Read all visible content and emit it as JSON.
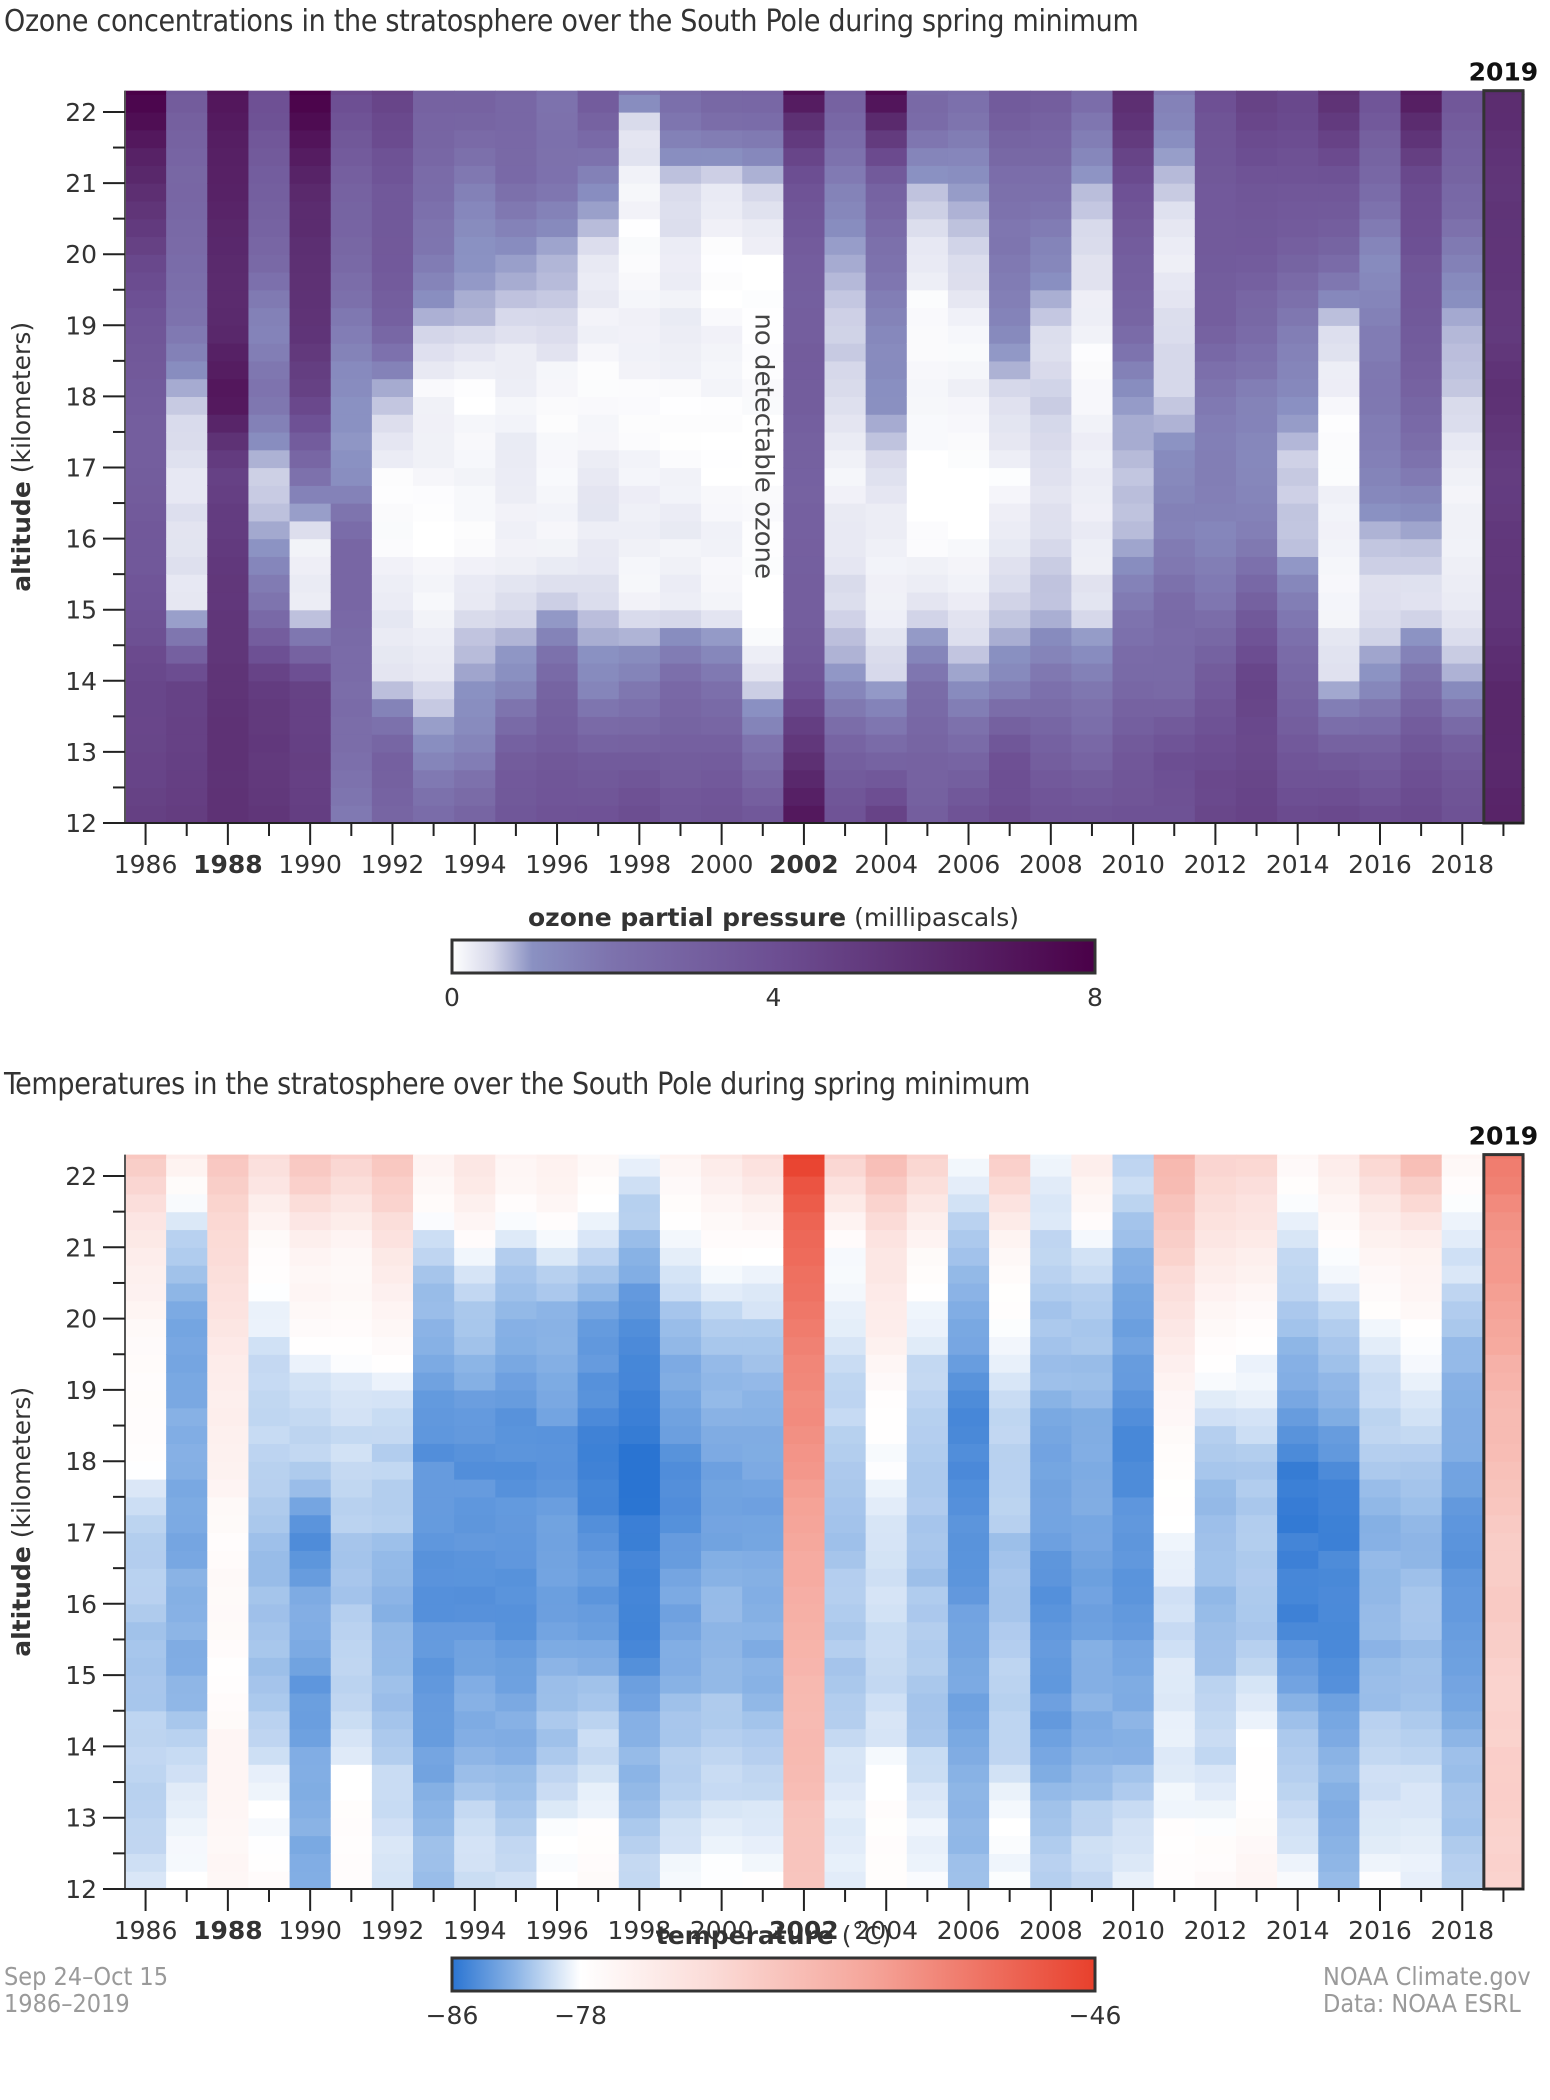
{
  "charts": [
    {
      "id": "ozone",
      "title": "Ozone concentrations in the stratosphere over the South Pole during spring minimum",
      "highlight_label": "2019",
      "annotation": "no detectable ozone",
      "annotation_year": 2001,
      "ylabel_bold": "altitude",
      "ylabel_rest": " (kilometers)",
      "colorbar": {
        "label_bold": "ozone partial pressure",
        "label_rest": " (millipascals)",
        "min": 0,
        "max": 8,
        "ticks": [
          {
            "value": 0,
            "label": "0"
          },
          {
            "value": 4,
            "label": "4"
          },
          {
            "value": 8,
            "label": "8"
          }
        ],
        "stops": [
          [
            0,
            "#ffffff"
          ],
          [
            0.5,
            "#d6d8ea"
          ],
          [
            1,
            "#8a91c2"
          ],
          [
            2,
            "#7d72ad"
          ],
          [
            4,
            "#6d4f93"
          ],
          [
            6,
            "#5a2a6d"
          ],
          [
            8,
            "#4a0048"
          ]
        ]
      }
    },
    {
      "id": "temperature",
      "title": "Temperatures in the stratosphere over the South Pole during spring minimum",
      "highlight_label": "2019",
      "ylabel_bold": "altitude",
      "ylabel_rest": " (kilometers)",
      "colorbar": {
        "label_bold": "temperature",
        "label_rest": " (˚C)",
        "min": -86,
        "max": -46,
        "ticks": [
          {
            "value": -86,
            "label": "−86"
          },
          {
            "value": -78,
            "label": "−78"
          },
          {
            "value": -46,
            "label": "−46"
          }
        ],
        "stops": [
          [
            -86,
            "#2a74d2"
          ],
          [
            -82,
            "#8db5e6"
          ],
          [
            -78,
            "#ffffff"
          ],
          [
            -70,
            "#fbdcd8"
          ],
          [
            -60,
            "#f5a59a"
          ],
          [
            -46,
            "#e8402c"
          ]
        ]
      }
    }
  ],
  "chart_data": [
    {
      "type": "heatmap",
      "title": "Ozone concentrations in the stratosphere over the South Pole during spring minimum",
      "xlabel": "",
      "ylabel": "altitude (kilometers)",
      "colorbar_label": "ozone partial pressure (millipascals)",
      "x": [
        1986,
        1987,
        1988,
        1989,
        1990,
        1991,
        1992,
        1993,
        1994,
        1995,
        1996,
        1997,
        1998,
        1999,
        2000,
        2001,
        2002,
        2003,
        2004,
        2005,
        2006,
        2007,
        2008,
        2009,
        2010,
        2011,
        2012,
        2013,
        2014,
        2015,
        2016,
        2017,
        2018,
        2019
      ],
      "x_tick_labels": [
        "1986",
        "1988",
        "1990",
        "1992",
        "1994",
        "1996",
        "1998",
        "2000",
        "2002",
        "2004",
        "2006",
        "2008",
        "2010",
        "2012",
        "2014",
        "2016",
        "2018"
      ],
      "x_tick_bold": [
        "1988",
        "2002"
      ],
      "y_nodes_km": [
        12,
        13,
        14,
        15,
        16,
        17,
        18,
        19,
        20,
        21,
        22,
        22.3
      ],
      "ylim": [
        12,
        22.3
      ],
      "y_ticks": [
        12,
        13,
        14,
        15,
        16,
        17,
        18,
        19,
        20,
        21,
        22
      ],
      "value_range": [
        0,
        8
      ],
      "highlight_year": 2019,
      "missing_year": 2001,
      "values_by_year": {
        "1986": [
          4.8,
          4.6,
          4.4,
          3.8,
          3.4,
          3.2,
          3.2,
          3.6,
          4.6,
          5.8,
          7.6,
          8.0
        ],
        "1987": [
          5.0,
          4.8,
          4.6,
          0.4,
          0.3,
          0.4,
          0.6,
          2.0,
          2.4,
          2.6,
          3.2,
          3.4
        ],
        "1988": [
          5.6,
          5.6,
          5.4,
          5.4,
          5.0,
          4.8,
          7.0,
          6.0,
          6.0,
          6.4,
          6.8,
          7.0
        ],
        "1989": [
          5.4,
          5.2,
          5.0,
          2.2,
          0.8,
          0.6,
          2.0,
          1.4,
          2.6,
          3.2,
          3.8,
          4.0
        ],
        "1990": [
          5.0,
          4.8,
          4.6,
          0.2,
          0.1,
          2.4,
          4.6,
          5.6,
          5.6,
          6.2,
          7.6,
          8.0
        ],
        "1991": [
          1.8,
          2.2,
          2.4,
          2.6,
          2.6,
          0.9,
          1.0,
          1.8,
          2.6,
          3.0,
          3.8,
          4.2
        ],
        "1992": [
          2.8,
          3.0,
          0.4,
          0.2,
          0.1,
          0.1,
          0.6,
          3.0,
          3.4,
          3.6,
          4.4,
          4.6
        ],
        "1993": [
          2.6,
          1.2,
          0.4,
          0.1,
          0.0,
          0.1,
          0.1,
          0.6,
          1.8,
          2.4,
          2.8,
          3.0
        ],
        "1994": [
          3.0,
          1.4,
          1.0,
          0.3,
          0.1,
          0.1,
          0.0,
          0.6,
          1.0,
          1.6,
          2.8,
          3.0
        ],
        "1995": [
          3.6,
          3.2,
          1.2,
          0.4,
          0.2,
          0.2,
          0.2,
          0.4,
          1.0,
          2.4,
          2.6,
          2.8
        ],
        "1996": [
          3.8,
          3.4,
          2.8,
          0.6,
          0.2,
          0.0,
          0.1,
          0.4,
          0.8,
          2.0,
          2.0,
          2.2
        ],
        "1997": [
          3.8,
          3.2,
          1.2,
          0.5,
          0.3,
          0.2,
          0.1,
          0.1,
          0.4,
          1.2,
          3.2,
          3.4
        ],
        "1998": [
          4.2,
          3.2,
          1.6,
          0.2,
          0.2,
          0.1,
          0.1,
          0.1,
          0.1,
          0.1,
          0.6,
          2.0
        ],
        "1999": [
          3.6,
          3.2,
          2.4,
          0.3,
          0.2,
          0.1,
          0.1,
          0.2,
          0.3,
          0.4,
          2.2,
          2.4
        ],
        "2000": [
          3.8,
          3.2,
          2.0,
          0.2,
          0.1,
          0.0,
          0.1,
          0.1,
          0.1,
          0.2,
          2.6,
          2.8
        ],
        "2001": [
          3.6,
          2.2,
          0.3,
          0.0,
          0.0,
          0.0,
          0.0,
          0.0,
          0.1,
          0.5,
          2.6,
          2.8
        ],
        "2002": [
          7.0,
          5.6,
          3.6,
          3.2,
          3.0,
          3.0,
          3.2,
          3.2,
          3.2,
          3.8,
          6.0,
          7.4
        ],
        "2003": [
          4.0,
          3.0,
          1.0,
          0.5,
          0.2,
          0.2,
          0.4,
          0.6,
          0.8,
          1.6,
          2.8,
          3.0
        ],
        "2004": [
          5.0,
          2.6,
          0.6,
          0.2,
          0.1,
          0.5,
          1.0,
          1.4,
          2.0,
          3.0,
          6.4,
          7.6
        ],
        "2005": [
          3.2,
          2.8,
          2.2,
          0.3,
          0.0,
          0.0,
          0.1,
          0.1,
          0.2,
          0.8,
          2.6,
          2.4
        ],
        "2006": [
          4.0,
          2.6,
          1.0,
          0.2,
          0.0,
          0.0,
          0.1,
          0.2,
          0.4,
          1.0,
          2.0,
          2.2
        ],
        "2007": [
          4.2,
          3.8,
          1.4,
          0.5,
          0.3,
          0.1,
          0.4,
          1.4,
          1.8,
          2.2,
          3.2,
          3.4
        ],
        "2008": [
          4.0,
          3.0,
          2.0,
          0.6,
          0.5,
          0.3,
          0.6,
          0.4,
          1.4,
          2.2,
          3.0,
          3.4
        ],
        "2009": [
          4.0,
          2.6,
          1.8,
          0.3,
          0.3,
          0.2,
          0.1,
          0.1,
          0.4,
          0.8,
          2.0,
          2.4
        ],
        "2010": [
          3.8,
          3.4,
          2.6,
          1.8,
          0.8,
          0.6,
          1.0,
          2.6,
          3.2,
          4.0,
          5.6,
          6.0
        ],
        "2011": [
          3.8,
          4.0,
          2.4,
          2.4,
          1.6,
          1.2,
          0.6,
          0.4,
          0.2,
          0.6,
          1.4,
          1.8
        ],
        "2012": [
          4.4,
          4.2,
          3.4,
          2.0,
          1.4,
          1.6,
          1.8,
          3.0,
          3.4,
          3.4,
          3.8,
          4.2
        ],
        "2013": [
          4.6,
          4.4,
          4.6,
          3.2,
          1.6,
          1.2,
          1.6,
          2.4,
          3.4,
          3.6,
          4.6,
          4.8
        ],
        "2014": [
          4.2,
          3.6,
          2.6,
          1.8,
          0.6,
          0.5,
          1.2,
          1.6,
          3.0,
          3.6,
          4.4,
          4.4
        ],
        "2015": [
          4.4,
          3.4,
          0.4,
          0.2,
          0.1,
          0.1,
          0.1,
          0.4,
          2.8,
          3.6,
          5.4,
          5.8
        ],
        "2016": [
          4.2,
          3.2,
          1.0,
          0.4,
          0.6,
          1.6,
          1.8,
          1.6,
          1.2,
          2.4,
          3.6,
          3.8
        ],
        "2017": [
          4.4,
          3.8,
          2.2,
          0.4,
          0.6,
          2.0,
          2.8,
          3.4,
          3.8,
          4.2,
          6.2,
          6.8
        ],
        "2018": [
          4.0,
          3.4,
          0.8,
          0.3,
          0.1,
          0.2,
          0.5,
          0.8,
          1.6,
          2.8,
          3.4,
          3.6
        ],
        "2019": [
          6.4,
          6.0,
          6.0,
          5.4,
          5.2,
          5.0,
          5.6,
          5.2,
          5.4,
          5.4,
          5.8,
          5.8
        ]
      }
    },
    {
      "type": "heatmap",
      "title": "Temperatures in the stratosphere over the South Pole during spring minimum",
      "xlabel": "",
      "ylabel": "altitude (kilometers)",
      "colorbar_label": "temperature (˚C)",
      "x": [
        1986,
        1987,
        1988,
        1989,
        1990,
        1991,
        1992,
        1993,
        1994,
        1995,
        1996,
        1997,
        1998,
        1999,
        2000,
        2001,
        2002,
        2003,
        2004,
        2005,
        2006,
        2007,
        2008,
        2009,
        2010,
        2011,
        2012,
        2013,
        2014,
        2015,
        2016,
        2017,
        2018,
        2019
      ],
      "x_tick_labels": [
        "1986",
        "1988",
        "1990",
        "1992",
        "1994",
        "1996",
        "1998",
        "2000",
        "2002",
        "2004",
        "2006",
        "2008",
        "2010",
        "2012",
        "2014",
        "2016",
        "2018"
      ],
      "x_tick_bold": [
        "1988",
        "2002"
      ],
      "y_nodes_km": [
        12,
        13,
        14,
        15,
        16,
        17,
        18,
        19,
        20,
        21,
        22,
        22.3
      ],
      "ylim": [
        12,
        22.3
      ],
      "y_ticks": [
        12,
        13,
        14,
        15,
        16,
        17,
        18,
        19,
        20,
        21,
        22
      ],
      "value_range": [
        -86,
        -46
      ],
      "highlight_year": 2019,
      "values_by_year": {
        "1986": [
          -79.5,
          -80,
          -80.5,
          -81,
          -81,
          -80.5,
          -78,
          -77.5,
          -76,
          -74,
          -68,
          -66
        ],
        "1987": [
          -78,
          -78.5,
          -80.5,
          -82,
          -82.5,
          -82.5,
          -82.5,
          -82.5,
          -83,
          -81,
          -76,
          -74
        ],
        "1988": [
          -76,
          -76,
          -76,
          -77.5,
          -77,
          -77,
          -75,
          -74,
          -72,
          -70,
          -67,
          -66
        ],
        "1989": [
          -77,
          -78,
          -80,
          -81,
          -81.5,
          -81,
          -80.5,
          -80,
          -79,
          -77,
          -72,
          -70
        ],
        "1990": [
          -82,
          -82.5,
          -83,
          -83.5,
          -82.5,
          -84.5,
          -80.5,
          -79.5,
          -77,
          -75,
          -67,
          -66
        ],
        "1991": [
          -77,
          -77.5,
          -79,
          -80.5,
          -81,
          -81,
          -80,
          -79,
          -77,
          -76,
          -70,
          -68
        ],
        "1992": [
          -79,
          -80,
          -80.5,
          -82,
          -82,
          -81,
          -80.5,
          -79,
          -76,
          -72,
          -67,
          -66
        ],
        "1993": [
          -81,
          -82,
          -83,
          -84,
          -84,
          -84,
          -84,
          -83.5,
          -82,
          -80,
          -76,
          -75
        ],
        "1994": [
          -79.5,
          -80,
          -82,
          -83,
          -84,
          -84,
          -84,
          -83,
          -81,
          -78,
          -73,
          -72
        ],
        "1995": [
          -79.5,
          -81,
          -82,
          -83.5,
          -84,
          -84,
          -84,
          -83.5,
          -82,
          -80,
          -76,
          -75
        ],
        "1996": [
          -78,
          -78.5,
          -81,
          -82,
          -83,
          -83.5,
          -84,
          -83,
          -82,
          -79,
          -75,
          -74
        ],
        "1997": [
          -77,
          -78,
          -80,
          -82,
          -83.5,
          -84.5,
          -85,
          -84.5,
          -83,
          -80,
          -77,
          -76
        ],
        "1998": [
          -80,
          -81,
          -82,
          -84,
          -85,
          -85.5,
          -86,
          -85.5,
          -84,
          -82,
          -79,
          -78
        ],
        "1999": [
          -78.5,
          -79.5,
          -81,
          -82,
          -83,
          -84,
          -84,
          -83,
          -81,
          -79,
          -76,
          -75
        ],
        "2000": [
          -78,
          -79,
          -80.5,
          -81.5,
          -82,
          -83,
          -83,
          -82,
          -80,
          -78,
          -74,
          -72
        ],
        "2001": [
          -78,
          -79,
          -81,
          -82,
          -82.5,
          -83,
          -83,
          -82,
          -80,
          -78,
          -72,
          -70
        ],
        "2002": [
          -66,
          -65,
          -64,
          -63,
          -62,
          -60,
          -58,
          -56,
          -54,
          -52,
          -48,
          -46
        ],
        "2003": [
          -78.5,
          -79,
          -80,
          -81,
          -81,
          -81,
          -81,
          -80,
          -79,
          -78,
          -70,
          -68
        ],
        "2004": [
          -77,
          -77.5,
          -79,
          -80,
          -80,
          -79,
          -78.5,
          -77,
          -74,
          -72,
          -66,
          -64
        ],
        "2005": [
          -78,
          -79,
          -80.5,
          -81,
          -81,
          -81,
          -81,
          -80,
          -79,
          -76,
          -70,
          -68
        ],
        "2006": [
          -81,
          -82,
          -82.5,
          -83,
          -83.5,
          -84,
          -85,
          -84,
          -83,
          -81,
          -79,
          -78
        ],
        "2007": [
          -78,
          -78.5,
          -80,
          -80.5,
          -81,
          -81,
          -80.5,
          -79.5,
          -78,
          -76,
          -69,
          -67
        ],
        "2008": [
          -80,
          -81.5,
          -83,
          -84,
          -84,
          -83.5,
          -83,
          -82,
          -81,
          -80,
          -79,
          -78
        ],
        "2009": [
          -79.5,
          -80.5,
          -82,
          -82.5,
          -83,
          -83,
          -82.5,
          -82,
          -81,
          -79,
          -75,
          -74
        ],
        "2010": [
          -79,
          -80,
          -82,
          -83,
          -83.5,
          -84,
          -84.5,
          -84,
          -83,
          -82,
          -80,
          -80
        ],
        "2011": [
          -77.5,
          -78,
          -79,
          -79.5,
          -79.5,
          -78.5,
          -77,
          -76,
          -72,
          -68,
          -64,
          -62
        ],
        "2012": [
          -77,
          -78,
          -80,
          -81,
          -81.5,
          -81.5,
          -81,
          -79,
          -76,
          -73,
          -69,
          -68
        ],
        "2013": [
          -76,
          -77,
          -78,
          -80,
          -81,
          -81,
          -80.5,
          -79,
          -77,
          -74,
          -70,
          -68
        ],
        "2014": [
          -78.5,
          -79.5,
          -81,
          -83,
          -85,
          -85.5,
          -85,
          -83,
          -81,
          -80,
          -77,
          -76
        ],
        "2015": [
          -82,
          -82,
          -82.5,
          -84,
          -85,
          -85,
          -84.5,
          -82,
          -80,
          -78,
          -74,
          -73
        ],
        "2016": [
          -78,
          -79,
          -80.5,
          -81.5,
          -82,
          -82,
          -81,
          -80,
          -78,
          -76,
          -70,
          -68
        ],
        "2017": [
          -78.5,
          -79,
          -80.5,
          -81,
          -81.5,
          -81.5,
          -81,
          -79,
          -77,
          -75,
          -66,
          -64
        ],
        "2018": [
          -80,
          -81,
          -82,
          -83,
          -84,
          -84,
          -83,
          -82,
          -81,
          -79,
          -77,
          -76
        ],
        "2019": [
          -68,
          -68,
          -68,
          -68,
          -67,
          -67,
          -65,
          -63,
          -60,
          -58,
          -55,
          -54
        ]
      }
    }
  ],
  "footer": {
    "left_line1": "Sep 24–Oct 15",
    "left_line2": "1986–2019",
    "right_line1": "NOAA Climate.gov",
    "right_line2": "Data: NOAA ESRL"
  }
}
